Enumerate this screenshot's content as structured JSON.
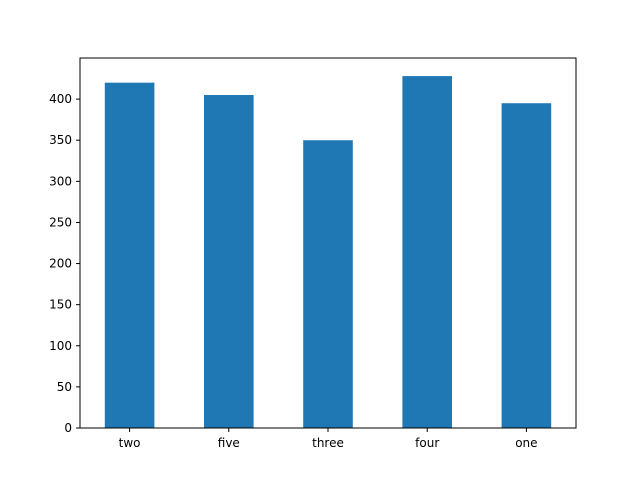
{
  "chart_data": {
    "type": "bar",
    "categories": [
      "two",
      "five",
      "three",
      "four",
      "one"
    ],
    "values": [
      420,
      405,
      350,
      428,
      395
    ],
    "ylim": [
      0,
      450
    ],
    "yticks": [
      0,
      50,
      100,
      150,
      200,
      250,
      300,
      350,
      400
    ],
    "title": "",
    "xlabel": "",
    "ylabel": "",
    "grid": false,
    "bar_color": "#1f77b4"
  }
}
